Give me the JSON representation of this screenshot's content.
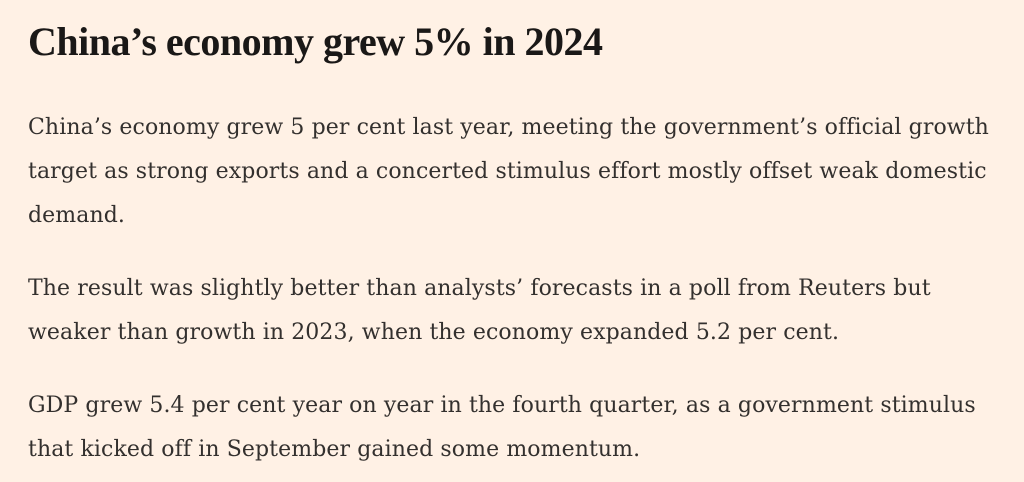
{
  "article": {
    "headline": "China’s economy grew 5% in 2024",
    "paragraphs": [
      "China’s economy grew 5 per cent last year, meeting the government’s official growth target as strong exports and a concerted stimulus effort mostly offset weak domestic demand.",
      "The result was slightly better than analysts’ forecasts in a poll from Reuters but weaker than growth in 2023, when the economy expanded 5.2 per cent.",
      "GDP grew 5.4 per cent year on year in the fourth quarter, as a government stimulus that kicked off in September gained some momentum."
    ]
  },
  "colors": {
    "background": "#FFF1E5",
    "headline_text": "#1A1817",
    "body_text": "#33302E"
  }
}
